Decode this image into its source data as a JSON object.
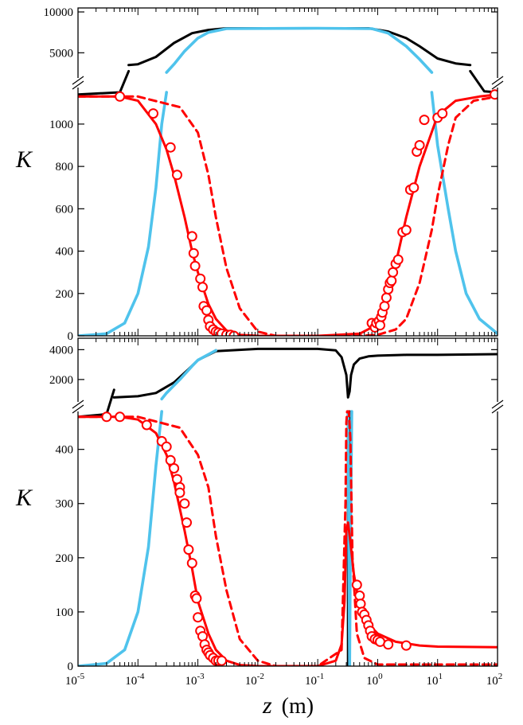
{
  "chart_data": {
    "type": "line",
    "x_axis": {
      "label_var": "z",
      "label_unit": "(m)",
      "scale": "log",
      "range": [
        1e-05,
        100
      ],
      "tick_labels": [
        {
          "base": "10",
          "exp": "-5"
        },
        {
          "base": "10",
          "exp": "-4"
        },
        {
          "base": "10",
          "exp": "-3"
        },
        {
          "base": "10",
          "exp": "-2"
        },
        {
          "base": "10",
          "exp": "-1"
        },
        {
          "base": "10",
          "exp": "0"
        },
        {
          "base": "10",
          "exp": "1"
        },
        {
          "base": "10",
          "exp": "2"
        }
      ]
    },
    "panels": [
      {
        "ylabel": "K",
        "upper_segment": {
          "range": [
            2500,
            10000
          ],
          "ticks": [
            "5000",
            "10000"
          ],
          "tick_values": [
            5000,
            10000
          ]
        },
        "lower_segment": {
          "range": [
            0,
            1150
          ],
          "ticks": [
            "0",
            "200",
            "400",
            "600",
            "800",
            "1000"
          ],
          "tick_values": [
            0,
            200,
            400,
            600,
            800,
            1000
          ]
        },
        "break_value": 1150,
        "series": [
          {
            "color": "#000000",
            "style": "solid",
            "segment": "upper",
            "x": [
              7e-05,
              0.0001,
              0.0002,
              0.0004,
              0.0008,
              0.0015,
              0.003,
              0.1,
              0.7,
              1.5,
              3,
              5,
              10,
              20,
              35
            ],
            "y": [
              3500,
              3600,
              4500,
              6200,
              7400,
              7800,
              8000,
              8000,
              8000,
              7600,
              6800,
              5800,
              4300,
              3700,
              3500
            ]
          },
          {
            "color": "#000000",
            "style": "solid",
            "segment": "lower",
            "x": [
              1e-05,
              5e-05,
              7e-05
            ],
            "y": [
              1140,
              1150,
              1250
            ]
          },
          {
            "color": "#000000",
            "style": "solid",
            "segment": "lower",
            "x": [
              35,
              60,
              100
            ],
            "y": [
              1250,
              1155,
              1150
            ]
          },
          {
            "color": "#4FC3EC",
            "style": "solid",
            "segment": "upper",
            "x": [
              0.0003,
              0.0004,
              0.0006,
              0.001,
              0.0015,
              0.003,
              0.1,
              0.8,
              1.5,
              3,
              5,
              8
            ],
            "y": [
              2600,
              3600,
              5200,
              6800,
              7500,
              7950,
              8000,
              7950,
              7400,
              5800,
              4200,
              2600
            ]
          },
          {
            "color": "#4FC3EC",
            "style": "solid",
            "segment": "lower",
            "x": [
              1e-05,
              3e-05,
              6e-05,
              0.0001,
              0.00015,
              0.0002,
              0.00025,
              0.0003
            ],
            "y": [
              0,
              10,
              60,
              200,
              420,
              700,
              1000,
              1150
            ]
          },
          {
            "color": "#4FC3EC",
            "style": "solid",
            "segment": "lower",
            "x": [
              8,
              10,
              15,
              20,
              30,
              50,
              100
            ],
            "y": [
              1150,
              900,
              600,
              400,
              200,
              80,
              10
            ]
          },
          {
            "color": "#FF0000",
            "style": "solid",
            "segment": "lower",
            "x": [
              1e-05,
              5e-05,
              0.0001,
              0.0002,
              0.0003,
              0.0004,
              0.0006,
              0.0008,
              0.001,
              0.0015,
              0.002,
              0.003,
              0.005,
              0.01,
              0.1,
              0.5,
              0.8,
              1,
              1.5,
              2,
              3,
              5,
              10,
              20,
              50,
              100
            ],
            "y": [
              1130,
              1130,
              1110,
              1000,
              880,
              760,
              560,
              400,
              300,
              150,
              80,
              25,
              5,
              0,
              0,
              10,
              40,
              80,
              200,
              340,
              560,
              800,
              1040,
              1110,
              1130,
              1140
            ]
          },
          {
            "color": "#FF0000",
            "style": "dashed",
            "segment": "lower",
            "x": [
              1e-05,
              0.0001,
              0.0005,
              0.001,
              0.0015,
              0.002,
              0.003,
              0.005,
              0.01,
              0.02,
              0.5,
              1,
              2,
              3,
              5,
              8,
              10,
              15,
              20,
              40,
              100
            ],
            "y": [
              1130,
              1130,
              1080,
              960,
              760,
              560,
              320,
              130,
              20,
              0,
              0,
              5,
              30,
              80,
              250,
              500,
              660,
              900,
              1030,
              1110,
              1130
            ]
          },
          {
            "color": "#FF0000",
            "style": "markers",
            "segment": "lower",
            "x": [
              5e-05,
              0.00018,
              0.00035,
              0.00045,
              0.0008,
              0.00085,
              0.0009,
              0.0011,
              0.0012,
              0.00125,
              0.0014,
              0.0015,
              0.0016,
              0.0018,
              0.002,
              0.0022,
              0.0025,
              0.003,
              0.0035,
              0.004,
              0.8,
              0.9,
              0.95,
              1.05,
              1.1,
              1.15,
              1.2,
              1.3,
              1.4,
              1.5,
              1.6,
              1.7,
              1.8,
              2,
              2.2,
              2.6,
              3,
              3.5,
              4,
              4.5,
              5,
              6,
              10,
              12,
              90
            ],
            "y": [
              1130,
              1050,
              890,
              760,
              470,
              390,
              330,
              270,
              230,
              140,
              120,
              75,
              45,
              30,
              20,
              15,
              10,
              5,
              5,
              0,
              60,
              40,
              60,
              70,
              50,
              90,
              110,
              140,
              180,
              220,
              250,
              260,
              300,
              340,
              360,
              490,
              500,
              690,
              700,
              870,
              900,
              1020,
              1030,
              1050,
              1140
            ]
          }
        ]
      },
      {
        "ylabel": "K",
        "upper_segment": {
          "range": [
            500,
            4500
          ],
          "ticks": [
            "2000",
            "4000"
          ],
          "tick_values": [
            2000,
            4000
          ]
        },
        "lower_segment": {
          "range": [
            0,
            470
          ],
          "ticks": [
            "0",
            "100",
            "200",
            "300",
            "400"
          ],
          "tick_values": [
            0,
            100,
            200,
            300,
            400
          ]
        },
        "break_value": 470,
        "series": [
          {
            "color": "#000000",
            "style": "solid",
            "segment": "upper",
            "x": [
              4e-05,
              0.0001,
              0.0002,
              0.0004,
              0.0007,
              0.001,
              0.002,
              0.01,
              0.1,
              0.2,
              0.25,
              0.3,
              0.32,
              0.34,
              0.36,
              0.4,
              0.5,
              0.7,
              1,
              3,
              10,
              100
            ],
            "y": [
              800,
              880,
              1100,
              1800,
              2700,
              3300,
              3900,
              4050,
              4050,
              3950,
              3500,
              2300,
              800,
              1200,
              2300,
              3000,
              3400,
              3550,
              3600,
              3650,
              3650,
              3700
            ]
          },
          {
            "color": "#000000",
            "style": "solid",
            "segment": "lower",
            "x": [
              1e-05,
              3e-05,
              4e-05
            ],
            "y": [
              460,
              465,
              510
            ]
          },
          {
            "color": "#000000",
            "style": "solid",
            "segment": "lower",
            "x": [
              0.32,
              0.32,
              0.34,
              0.34
            ],
            "y": [
              470,
              0,
              0,
              470
            ]
          },
          {
            "color": "#4FC3EC",
            "style": "solid",
            "segment": "upper",
            "x": [
              0.00025,
              0.0003,
              0.0005,
              0.0008,
              0.001,
              0.002
            ],
            "y": [
              700,
              1100,
              2000,
              2900,
              3300,
              3950
            ]
          },
          {
            "color": "#4FC3EC",
            "style": "solid",
            "segment": "lower",
            "x": [
              1e-05,
              3e-05,
              6e-05,
              0.0001,
              0.00015,
              0.0002,
              0.00025
            ],
            "y": [
              0,
              5,
              30,
              100,
              220,
              370,
              470
            ]
          },
          {
            "color": "#4FC3EC",
            "style": "solid",
            "segment": "lower",
            "x": [
              0.32,
              0.33,
              0.34,
              0.35,
              0.37
            ],
            "y": [
              470,
              200,
              0,
              200,
              470
            ]
          },
          {
            "color": "#FF0000",
            "style": "solid",
            "segment": "lower",
            "x": [
              1e-05,
              5e-05,
              0.0001,
              0.0002,
              0.0003,
              0.0004,
              0.0006,
              0.0008,
              0.001,
              0.0015,
              0.002,
              0.003,
              0.005,
              0.01,
              0.1,
              0.2,
              0.25,
              0.28,
              0.3,
              0.32,
              0.35,
              0.4,
              0.5,
              0.6,
              1,
              2,
              5,
              10,
              100
            ],
            "y": [
              460,
              460,
              455,
              430,
              390,
              340,
              250,
              180,
              120,
              60,
              30,
              10,
              2,
              0,
              0,
              10,
              40,
              120,
              250,
              265,
              230,
              170,
              110,
              85,
              60,
              45,
              38,
              36,
              35
            ]
          },
          {
            "color": "#FF0000",
            "style": "dashed",
            "segment": "lower",
            "x": [
              1e-05,
              0.0001,
              0.0005,
              0.001,
              0.0015,
              0.002,
              0.003,
              0.005,
              0.01,
              0.02,
              0.1,
              0.25,
              0.29,
              0.3,
              0.31,
              0.33,
              0.35,
              0.38,
              0.45,
              0.6,
              1,
              100
            ],
            "y": [
              460,
              460,
              440,
              390,
              330,
              240,
              140,
              50,
              10,
              0,
              0,
              30,
              300,
              450,
              470,
              470,
              420,
              200,
              60,
              15,
              3,
              3
            ]
          },
          {
            "color": "#FF0000",
            "style": "markers",
            "segment": "lower",
            "x": [
              3e-05,
              5e-05,
              0.00014,
              0.00025,
              0.0003,
              0.00035,
              0.0004,
              0.00045,
              0.0005,
              0.0005,
              0.0006,
              0.00065,
              0.0007,
              0.0008,
              0.0009,
              0.00095,
              0.001,
              0.0011,
              0.0012,
              0.0013,
              0.0014,
              0.0015,
              0.0016,
              0.0018,
              0.002,
              0.0022,
              0.0025,
              0.45,
              0.5,
              0.52,
              0.55,
              0.6,
              0.65,
              0.7,
              0.75,
              0.8,
              0.9,
              1,
              1.1,
              1.5,
              3
            ],
            "y": [
              460,
              460,
              445,
              415,
              405,
              380,
              365,
              345,
              330,
              320,
              300,
              265,
              215,
              190,
              130,
              125,
              90,
              65,
              55,
              40,
              30,
              25,
              20,
              15,
              10,
              10,
              10,
              150,
              130,
              115,
              100,
              95,
              85,
              75,
              65,
              55,
              50,
              48,
              45,
              40,
              38
            ]
          }
        ]
      }
    ]
  }
}
